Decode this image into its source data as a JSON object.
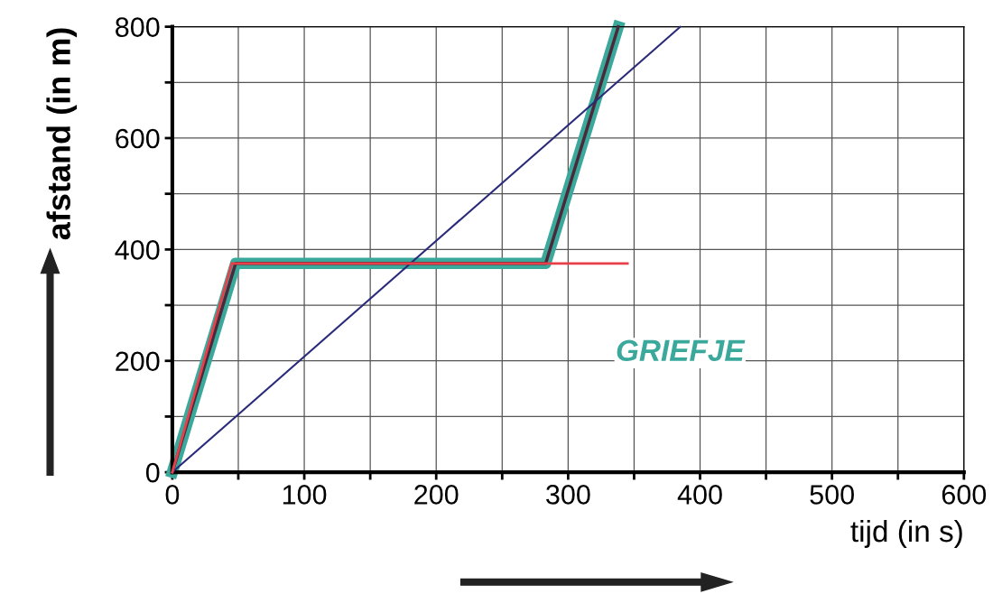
{
  "chart_data": {
    "type": "line",
    "xlabel": "tijd (in s)",
    "ylabel": "afstand (in m)",
    "xlim": [
      0,
      600
    ],
    "ylim": [
      0,
      800
    ],
    "xticks": [
      0,
      {
        "value": 50,
        "label": null
      },
      100,
      {
        "value": 150,
        "label": null
      },
      200,
      {
        "value": 250,
        "label": null
      },
      300,
      {
        "value": 350,
        "label": null
      },
      400,
      {
        "value": 450,
        "label": null
      },
      500,
      {
        "value": 550,
        "label": null
      },
      600
    ],
    "yticks": [
      0,
      {
        "value": 100,
        "label": null
      },
      200,
      {
        "value": 300,
        "label": null
      },
      400,
      {
        "value": 500,
        "label": null
      },
      600,
      {
        "value": 700,
        "label": null
      },
      800
    ],
    "grid": true,
    "legend": false,
    "marker": "none",
    "line_style": "solid",
    "series": [
      {
        "color": "#3aa89a",
        "x": [
          0,
          48,
          283,
          338
        ],
        "values": [
          0,
          375,
          375,
          800
        ]
      },
      {
        "color": "#e8404a",
        "x": [
          0,
          45,
          345
        ],
        "values": [
          0,
          375,
          375
        ]
      },
      {
        "color": "#4a2a3a",
        "x": [
          0,
          48,
          283,
          338
        ],
        "values": [
          0,
          375,
          375,
          800
        ]
      },
      {
        "color": "#2a2a7a",
        "x": [
          0,
          385
        ],
        "values": [
          0,
          800
        ]
      }
    ],
    "annotations": [
      "GRIEFJE"
    ]
  }
}
